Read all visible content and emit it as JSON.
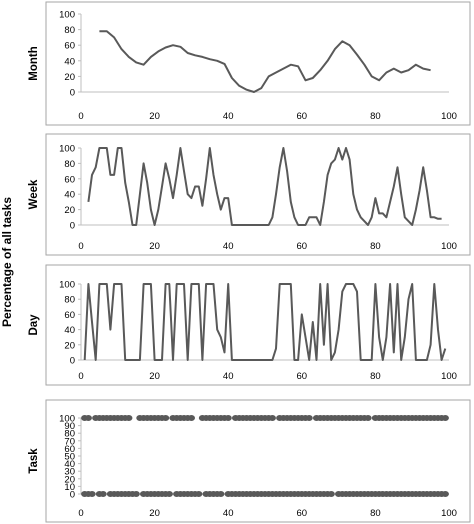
{
  "figure": {
    "shared_ylabel": "Percentage of all tasks",
    "line_color": "#595959",
    "frame_color": "#a6a6a6",
    "text_color": "#000000"
  },
  "chart_data": [
    {
      "type": "line",
      "ylabel": "Month",
      "xlim": [
        0,
        100
      ],
      "ylim": [
        0,
        100
      ],
      "x_ticks": [
        0,
        20,
        40,
        60,
        80,
        100
      ],
      "y_ticks": [
        0,
        20,
        40,
        60,
        80,
        100
      ],
      "grid": false,
      "series": [
        {
          "x": [
            5,
            7,
            9,
            11,
            13,
            15,
            17,
            19,
            21,
            23,
            25,
            27,
            29,
            31,
            33,
            35,
            37,
            39,
            41,
            43,
            45,
            47,
            49,
            51,
            53,
            55,
            57,
            59,
            61,
            63,
            65,
            67,
            69,
            71,
            73,
            75,
            77,
            79,
            81,
            83,
            85,
            87,
            89,
            91,
            93,
            95
          ],
          "y": [
            78,
            78,
            70,
            55,
            45,
            38,
            35,
            45,
            52,
            57,
            60,
            58,
            50,
            47,
            45,
            42,
            40,
            36,
            18,
            8,
            3,
            0,
            5,
            20,
            25,
            30,
            35,
            33,
            15,
            18,
            28,
            40,
            55,
            65,
            60,
            48,
            35,
            20,
            15,
            25,
            30,
            25,
            28,
            35,
            30,
            28
          ]
        }
      ]
    },
    {
      "type": "line",
      "ylabel": "Week",
      "xlim": [
        0,
        100
      ],
      "ylim": [
        0,
        100
      ],
      "x_ticks": [
        0,
        20,
        40,
        60,
        80,
        100
      ],
      "y_ticks": [
        0,
        20,
        40,
        60,
        80,
        100
      ],
      "grid": false,
      "series": [
        {
          "x": [
            2,
            3,
            4,
            5,
            6,
            7,
            8,
            9,
            10,
            11,
            12,
            13,
            14,
            15,
            16,
            17,
            18,
            19,
            20,
            21,
            22,
            23,
            24,
            25,
            26,
            27,
            28,
            29,
            30,
            31,
            32,
            33,
            34,
            35,
            36,
            37,
            38,
            39,
            40,
            41,
            42,
            43,
            44,
            45,
            46,
            47,
            48,
            49,
            50,
            51,
            52,
            53,
            54,
            55,
            56,
            57,
            58,
            59,
            60,
            61,
            62,
            63,
            64,
            65,
            66,
            67,
            68,
            69,
            70,
            71,
            72,
            73,
            74,
            75,
            76,
            77,
            78,
            79,
            80,
            81,
            82,
            83,
            84,
            85,
            86,
            87,
            88,
            89,
            90,
            91,
            92,
            93,
            94,
            95,
            96,
            97,
            98
          ],
          "y": [
            30,
            65,
            75,
            100,
            100,
            100,
            65,
            65,
            100,
            100,
            55,
            30,
            0,
            0,
            40,
            80,
            55,
            20,
            0,
            20,
            50,
            80,
            60,
            35,
            65,
            100,
            70,
            40,
            35,
            50,
            50,
            25,
            60,
            100,
            65,
            40,
            20,
            35,
            35,
            0,
            0,
            0,
            0,
            0,
            0,
            0,
            0,
            0,
            0,
            0,
            10,
            40,
            75,
            100,
            70,
            30,
            10,
            0,
            0,
            0,
            10,
            10,
            10,
            0,
            30,
            65,
            80,
            85,
            100,
            85,
            100,
            85,
            40,
            20,
            10,
            5,
            0,
            10,
            35,
            15,
            15,
            10,
            30,
            50,
            75,
            40,
            10,
            5,
            0,
            20,
            45,
            75,
            45,
            10,
            10,
            8,
            8
          ]
        }
      ]
    },
    {
      "type": "line",
      "ylabel": "Day",
      "xlim": [
        0,
        100
      ],
      "ylim": [
        0,
        100
      ],
      "x_ticks": [
        0,
        20,
        40,
        60,
        80,
        100
      ],
      "y_ticks": [
        0,
        20,
        40,
        60,
        80,
        100
      ],
      "grid": false,
      "series": [
        {
          "x": [
            1,
            2,
            3,
            4,
            5,
            6,
            7,
            8,
            9,
            10,
            11,
            12,
            13,
            14,
            15,
            16,
            17,
            18,
            19,
            20,
            21,
            22,
            23,
            24,
            25,
            26,
            27,
            28,
            29,
            30,
            31,
            32,
            33,
            34,
            35,
            36,
            37,
            38,
            39,
            40,
            41,
            42,
            43,
            44,
            45,
            46,
            47,
            48,
            49,
            50,
            51,
            52,
            53,
            54,
            55,
            56,
            57,
            58,
            59,
            60,
            61,
            62,
            63,
            64,
            65,
            66,
            67,
            68,
            69,
            70,
            71,
            72,
            73,
            74,
            75,
            76,
            77,
            78,
            79,
            80,
            81,
            82,
            83,
            84,
            85,
            86,
            87,
            88,
            89,
            90,
            91,
            92,
            93,
            94,
            95,
            96,
            97,
            98,
            99
          ],
          "y": [
            0,
            100,
            50,
            0,
            100,
            100,
            100,
            40,
            100,
            100,
            100,
            0,
            0,
            0,
            0,
            0,
            100,
            100,
            100,
            0,
            0,
            0,
            100,
            100,
            0,
            100,
            100,
            100,
            0,
            100,
            100,
            100,
            0,
            100,
            100,
            100,
            40,
            30,
            10,
            100,
            0,
            0,
            0,
            0,
            0,
            0,
            0,
            0,
            0,
            0,
            0,
            0,
            15,
            100,
            100,
            100,
            100,
            0,
            0,
            60,
            30,
            0,
            50,
            0,
            100,
            20,
            100,
            0,
            10,
            40,
            90,
            100,
            100,
            100,
            90,
            0,
            0,
            0,
            0,
            100,
            30,
            0,
            30,
            100,
            10,
            100,
            0,
            30,
            80,
            100,
            0,
            0,
            0,
            0,
            20,
            100,
            40,
            0,
            15
          ]
        }
      ]
    },
    {
      "type": "scatter",
      "ylabel": "Task",
      "xlim": [
        0,
        100
      ],
      "ylim": [
        0,
        100
      ],
      "x_ticks": [
        0,
        20,
        40,
        60,
        80,
        100
      ],
      "y_ticks": [
        0,
        10,
        20,
        30,
        40,
        50,
        60,
        70,
        80,
        90,
        100
      ],
      "grid": false,
      "series": [
        {
          "x": [
            1,
            2,
            4,
            5,
            6,
            7,
            8,
            9,
            10,
            11,
            12,
            13,
            16,
            17,
            18,
            19,
            20,
            21,
            22,
            23,
            25,
            26,
            27,
            28,
            29,
            30,
            33,
            34,
            35,
            36,
            37,
            38,
            39,
            40,
            42,
            43,
            44,
            45,
            46,
            47,
            48,
            49,
            50,
            51,
            52,
            54,
            55,
            56,
            57,
            58,
            59,
            60,
            61,
            62,
            64,
            65,
            66,
            67,
            68,
            69,
            70,
            71,
            72,
            73,
            74,
            75,
            76,
            77,
            78,
            80,
            81,
            82,
            83,
            84,
            85,
            86,
            87,
            88,
            89,
            90,
            91,
            92,
            93,
            94,
            95,
            96,
            97,
            98,
            99
          ],
          "y": [
            100,
            100,
            100,
            100,
            100,
            100,
            100,
            100,
            100,
            100,
            100,
            100,
            100,
            100,
            100,
            100,
            100,
            100,
            100,
            100,
            100,
            100,
            100,
            100,
            100,
            100,
            100,
            100,
            100,
            100,
            100,
            100,
            100,
            100,
            100,
            100,
            100,
            100,
            100,
            100,
            100,
            100,
            100,
            100,
            100,
            100,
            100,
            100,
            100,
            100,
            100,
            100,
            100,
            100,
            100,
            100,
            100,
            100,
            100,
            100,
            100,
            100,
            100,
            100,
            100,
            100,
            100,
            100,
            100,
            100,
            100,
            100,
            100,
            100,
            100,
            100,
            100,
            100,
            100,
            100,
            100,
            100,
            100,
            100,
            100,
            100,
            100,
            100,
            100
          ]
        },
        {
          "x": [
            1,
            2,
            3,
            5,
            6,
            8,
            9,
            10,
            11,
            12,
            13,
            14,
            15,
            17,
            18,
            19,
            20,
            21,
            22,
            23,
            24,
            26,
            27,
            28,
            29,
            30,
            31,
            32,
            34,
            35,
            36,
            37,
            38,
            40,
            41,
            42,
            43,
            44,
            45,
            46,
            47,
            48,
            49,
            50,
            51,
            52,
            53,
            54,
            55,
            56,
            57,
            58,
            59,
            60,
            61,
            62,
            63,
            64,
            65,
            66,
            67,
            68,
            70,
            71,
            72,
            73,
            74,
            75,
            76,
            77,
            78,
            79,
            80,
            81,
            82,
            83,
            84,
            85,
            86,
            87,
            88,
            89,
            90,
            91,
            92,
            93,
            94,
            95,
            96,
            97,
            98,
            99
          ],
          "y": [
            0,
            0,
            0,
            0,
            0,
            0,
            0,
            0,
            0,
            0,
            0,
            0,
            0,
            0,
            0,
            0,
            0,
            0,
            0,
            0,
            0,
            0,
            0,
            0,
            0,
            0,
            0,
            0,
            0,
            0,
            0,
            0,
            0,
            0,
            0,
            0,
            0,
            0,
            0,
            0,
            0,
            0,
            0,
            0,
            0,
            0,
            0,
            0,
            0,
            0,
            0,
            0,
            0,
            0,
            0,
            0,
            0,
            0,
            0,
            0,
            0,
            0,
            0,
            0,
            0,
            0,
            0,
            0,
            0,
            0,
            0,
            0,
            0,
            0,
            0,
            0,
            0,
            0,
            0,
            0,
            0,
            0,
            0,
            0,
            0,
            0,
            0,
            0,
            0,
            0,
            0,
            0
          ]
        }
      ]
    }
  ]
}
